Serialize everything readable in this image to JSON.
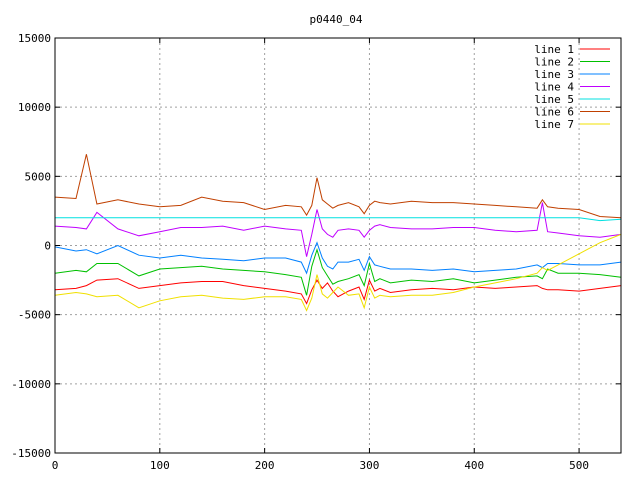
{
  "chart_data": {
    "type": "line",
    "title": "p0440_04",
    "xlabel": "",
    "ylabel": "",
    "xlim": [
      0,
      540
    ],
    "ylim": [
      -15000,
      15000
    ],
    "x_ticks": [
      0,
      100,
      200,
      300,
      400,
      500
    ],
    "y_ticks": [
      -15000,
      -10000,
      -5000,
      0,
      5000,
      10000,
      15000
    ],
    "grid": true,
    "legend_position": "top-right",
    "x": [
      0,
      20,
      30,
      40,
      60,
      80,
      100,
      120,
      140,
      160,
      180,
      200,
      220,
      235,
      240,
      245,
      250,
      255,
      260,
      265,
      270,
      280,
      290,
      295,
      300,
      305,
      310,
      320,
      340,
      360,
      380,
      400,
      420,
      440,
      460,
      465,
      470,
      480,
      500,
      520,
      540
    ],
    "series": [
      {
        "name": "line 1",
        "color": "#ff0000",
        "values": [
          -3200,
          -3100,
          -2900,
          -2500,
          -2400,
          -3100,
          -2900,
          -2700,
          -2600,
          -2600,
          -2900,
          -3100,
          -3300,
          -3500,
          -4200,
          -3200,
          -2500,
          -3100,
          -2700,
          -3300,
          -3700,
          -3300,
          -3000,
          -3900,
          -2500,
          -3300,
          -3100,
          -3400,
          -3200,
          -3100,
          -3200,
          -3000,
          -3100,
          -3000,
          -2900,
          -3100,
          -3200,
          -3200,
          -3300,
          -3100,
          -2900
        ]
      },
      {
        "name": "line 2",
        "color": "#00c000",
        "values": [
          -2000,
          -1800,
          -1900,
          -1300,
          -1300,
          -2200,
          -1700,
          -1600,
          -1500,
          -1700,
          -1800,
          -1900,
          -2100,
          -2300,
          -3600,
          -1500,
          -300,
          -1600,
          -2200,
          -2800,
          -2600,
          -2400,
          -2100,
          -2900,
          -1300,
          -2600,
          -2400,
          -2700,
          -2500,
          -2600,
          -2400,
          -2700,
          -2500,
          -2300,
          -2200,
          -2400,
          -1700,
          -2000,
          -2000,
          -2100,
          -2300
        ]
      },
      {
        "name": "line 3",
        "color": "#0080ff",
        "values": [
          -100,
          -400,
          -300,
          -600,
          0,
          -700,
          -900,
          -700,
          -900,
          -1000,
          -1100,
          -900,
          -900,
          -1200,
          -2000,
          -700,
          200,
          -900,
          -1500,
          -1700,
          -1200,
          -1200,
          -1000,
          -1800,
          -800,
          -1400,
          -1500,
          -1700,
          -1700,
          -1800,
          -1700,
          -1900,
          -1800,
          -1700,
          -1400,
          -1600,
          -1300,
          -1300,
          -1400,
          -1400,
          -1200
        ]
      },
      {
        "name": "line 4",
        "color": "#c000ff",
        "values": [
          1400,
          1300,
          1200,
          2400,
          1200,
          700,
          1000,
          1300,
          1300,
          1400,
          1100,
          1400,
          1200,
          1100,
          -800,
          800,
          2600,
          1200,
          800,
          600,
          1100,
          1200,
          1100,
          600,
          1100,
          1400,
          1500,
          1300,
          1200,
          1200,
          1300,
          1300,
          1100,
          1000,
          1100,
          3100,
          1000,
          900,
          700,
          600,
          800
        ]
      },
      {
        "name": "line 5",
        "color": "#00e0e0",
        "values": [
          2000,
          2000,
          2000,
          2000,
          2000,
          2000,
          2000,
          2000,
          2000,
          2000,
          2000,
          2000,
          2000,
          2000,
          2000,
          2000,
          2000,
          2000,
          2000,
          2000,
          2000,
          2000,
          2000,
          2000,
          2000,
          2000,
          2000,
          2000,
          2000,
          2000,
          2000,
          2000,
          2000,
          2000,
          2000,
          2000,
          2000,
          2000,
          2000,
          1800,
          1900
        ]
      },
      {
        "name": "line 6",
        "color": "#c04000",
        "values": [
          3500,
          3400,
          6600,
          3000,
          3300,
          3000,
          2800,
          2900,
          3500,
          3200,
          3100,
          2600,
          2900,
          2800,
          2200,
          2900,
          4900,
          3300,
          3000,
          2700,
          2900,
          3100,
          2800,
          2300,
          2900,
          3200,
          3100,
          3000,
          3200,
          3100,
          3100,
          3000,
          2900,
          2800,
          2700,
          3300,
          2800,
          2700,
          2600,
          2100,
          2000
        ]
      },
      {
        "name": "line 7",
        "color": "#f0e000",
        "values": [
          -3600,
          -3400,
          -3500,
          -3700,
          -3600,
          -4500,
          -4000,
          -3700,
          -3600,
          -3800,
          -3900,
          -3700,
          -3700,
          -3900,
          -4700,
          -3800,
          -2100,
          -3500,
          -3800,
          -3400,
          -3000,
          -3600,
          -3500,
          -4500,
          -3000,
          -3800,
          -3600,
          -3700,
          -3600,
          -3600,
          -3400,
          -3000,
          -2700,
          -2400,
          -2000,
          -1600,
          -1800,
          -1400,
          -600,
          200,
          800
        ]
      }
    ]
  }
}
